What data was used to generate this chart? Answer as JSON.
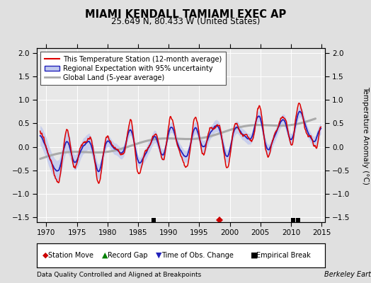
{
  "title": "MIAMI KENDALL TAMIAMI EXEC AP",
  "subtitle": "25.649 N, 80.433 W (United States)",
  "xlabel_left": "Data Quality Controlled and Aligned at Breakpoints",
  "xlabel_right": "Berkeley Earth",
  "ylabel": "Temperature Anomaly (°C)",
  "xlim": [
    1968.5,
    2015.5
  ],
  "ylim": [
    -1.6,
    2.1
  ],
  "yticks": [
    -1.5,
    -1.0,
    -0.5,
    0.0,
    0.5,
    1.0,
    1.5,
    2.0
  ],
  "xticks": [
    1970,
    1975,
    1980,
    1985,
    1990,
    1995,
    2000,
    2005,
    2010,
    2015
  ],
  "bg_color": "#e0e0e0",
  "plot_bg_color": "#e8e8e8",
  "station_color": "#dd0000",
  "regional_color": "#2222bb",
  "regional_fill_color": "#c0c8ee",
  "global_color": "#aaaaaa",
  "legend_entries": [
    "This Temperature Station (12-month average)",
    "Regional Expectation with 95% uncertainty",
    "Global Land (5-year average)"
  ],
  "marker_events": {
    "station_move": [
      1998.3
    ],
    "record_gap": [],
    "obs_change": [],
    "empirical_break": [
      1987.5,
      2010.3,
      2011.2
    ]
  }
}
